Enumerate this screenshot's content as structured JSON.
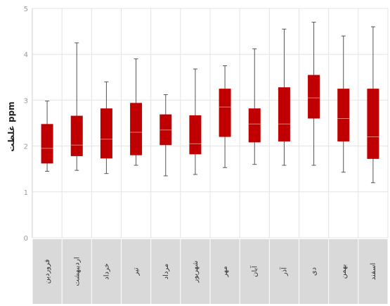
{
  "chart_data": {
    "type": "boxplot",
    "title": "",
    "xlabel": "",
    "ylabel": "غلظت ppm",
    "ylim": [
      0,
      5
    ],
    "yticks": [
      "0",
      "1",
      "2",
      "3",
      "4",
      "5"
    ],
    "grid": true,
    "categories": [
      "فروردین",
      "اردیبهشت",
      "خرداد",
      "تیر",
      "مرداد",
      "شهریور",
      "مهر",
      "آبان",
      "آذر",
      "دی",
      "بهمن",
      "اسفند"
    ],
    "series": [
      {
        "boxes": [
          {
            "min": 1.45,
            "q1": 1.62,
            "median": 1.95,
            "q3": 2.48,
            "max": 2.98
          },
          {
            "min": 1.47,
            "q1": 1.78,
            "median": 2.02,
            "q3": 2.66,
            "max": 4.25
          },
          {
            "min": 1.4,
            "q1": 1.73,
            "median": 2.15,
            "q3": 2.82,
            "max": 3.4
          },
          {
            "min": 1.58,
            "q1": 1.8,
            "median": 2.3,
            "q3": 2.94,
            "max": 3.9
          },
          {
            "min": 1.35,
            "q1": 2.02,
            "median": 2.35,
            "q3": 2.69,
            "max": 3.12
          },
          {
            "min": 1.38,
            "q1": 1.82,
            "median": 2.05,
            "q3": 2.67,
            "max": 3.68
          },
          {
            "min": 1.53,
            "q1": 2.2,
            "median": 2.85,
            "q3": 3.25,
            "max": 3.75
          },
          {
            "min": 1.6,
            "q1": 2.08,
            "median": 2.48,
            "q3": 2.82,
            "max": 4.12
          },
          {
            "min": 1.58,
            "q1": 2.1,
            "median": 2.48,
            "q3": 3.28,
            "max": 4.55
          },
          {
            "min": 1.58,
            "q1": 2.6,
            "median": 3.05,
            "q3": 3.55,
            "max": 4.7
          },
          {
            "min": 1.43,
            "q1": 2.1,
            "median": 2.6,
            "q3": 3.25,
            "max": 4.4
          },
          {
            "min": 1.2,
            "q1": 1.72,
            "median": 2.2,
            "q3": 3.25,
            "max": 4.6
          }
        ]
      }
    ]
  },
  "style": {
    "box_color": "#c00000",
    "median_color": "#e87878",
    "whisker_color": "#555555",
    "grid_color": "#e4e4e4",
    "label_band_color": "#d9d9d9"
  }
}
